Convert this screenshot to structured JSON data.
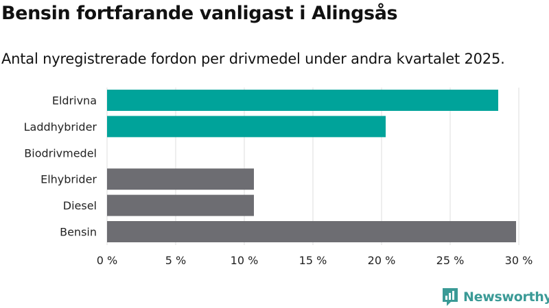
{
  "title": "Bensin fortfarande vanligast i Alingsås",
  "subtitle": "Antal nyregistrerade fordon per drivmedel under andra kvartalet 2025.",
  "brand": {
    "name": "Newsworthy",
    "color": "#3a9a96"
  },
  "chart_data": {
    "type": "bar",
    "orientation": "horizontal",
    "categories": [
      "Eldrivna",
      "Laddhybrider",
      "Biodrivmedel",
      "Elhybrider",
      "Diesel",
      "Bensin"
    ],
    "values": [
      28.5,
      20.3,
      0,
      10.7,
      10.7,
      29.8
    ],
    "bar_colors": [
      "#00a39a",
      "#00a39a",
      "#00a39a",
      "#6d6d72",
      "#6d6d72",
      "#6d6d72"
    ],
    "xlim": [
      0,
      30
    ],
    "xticks": [
      0,
      5,
      10,
      15,
      20,
      25,
      30
    ],
    "xtick_labels": [
      "0 %",
      "5 %",
      "10 %",
      "15 %",
      "20 %",
      "25 %",
      "30 %"
    ],
    "grid": true
  }
}
